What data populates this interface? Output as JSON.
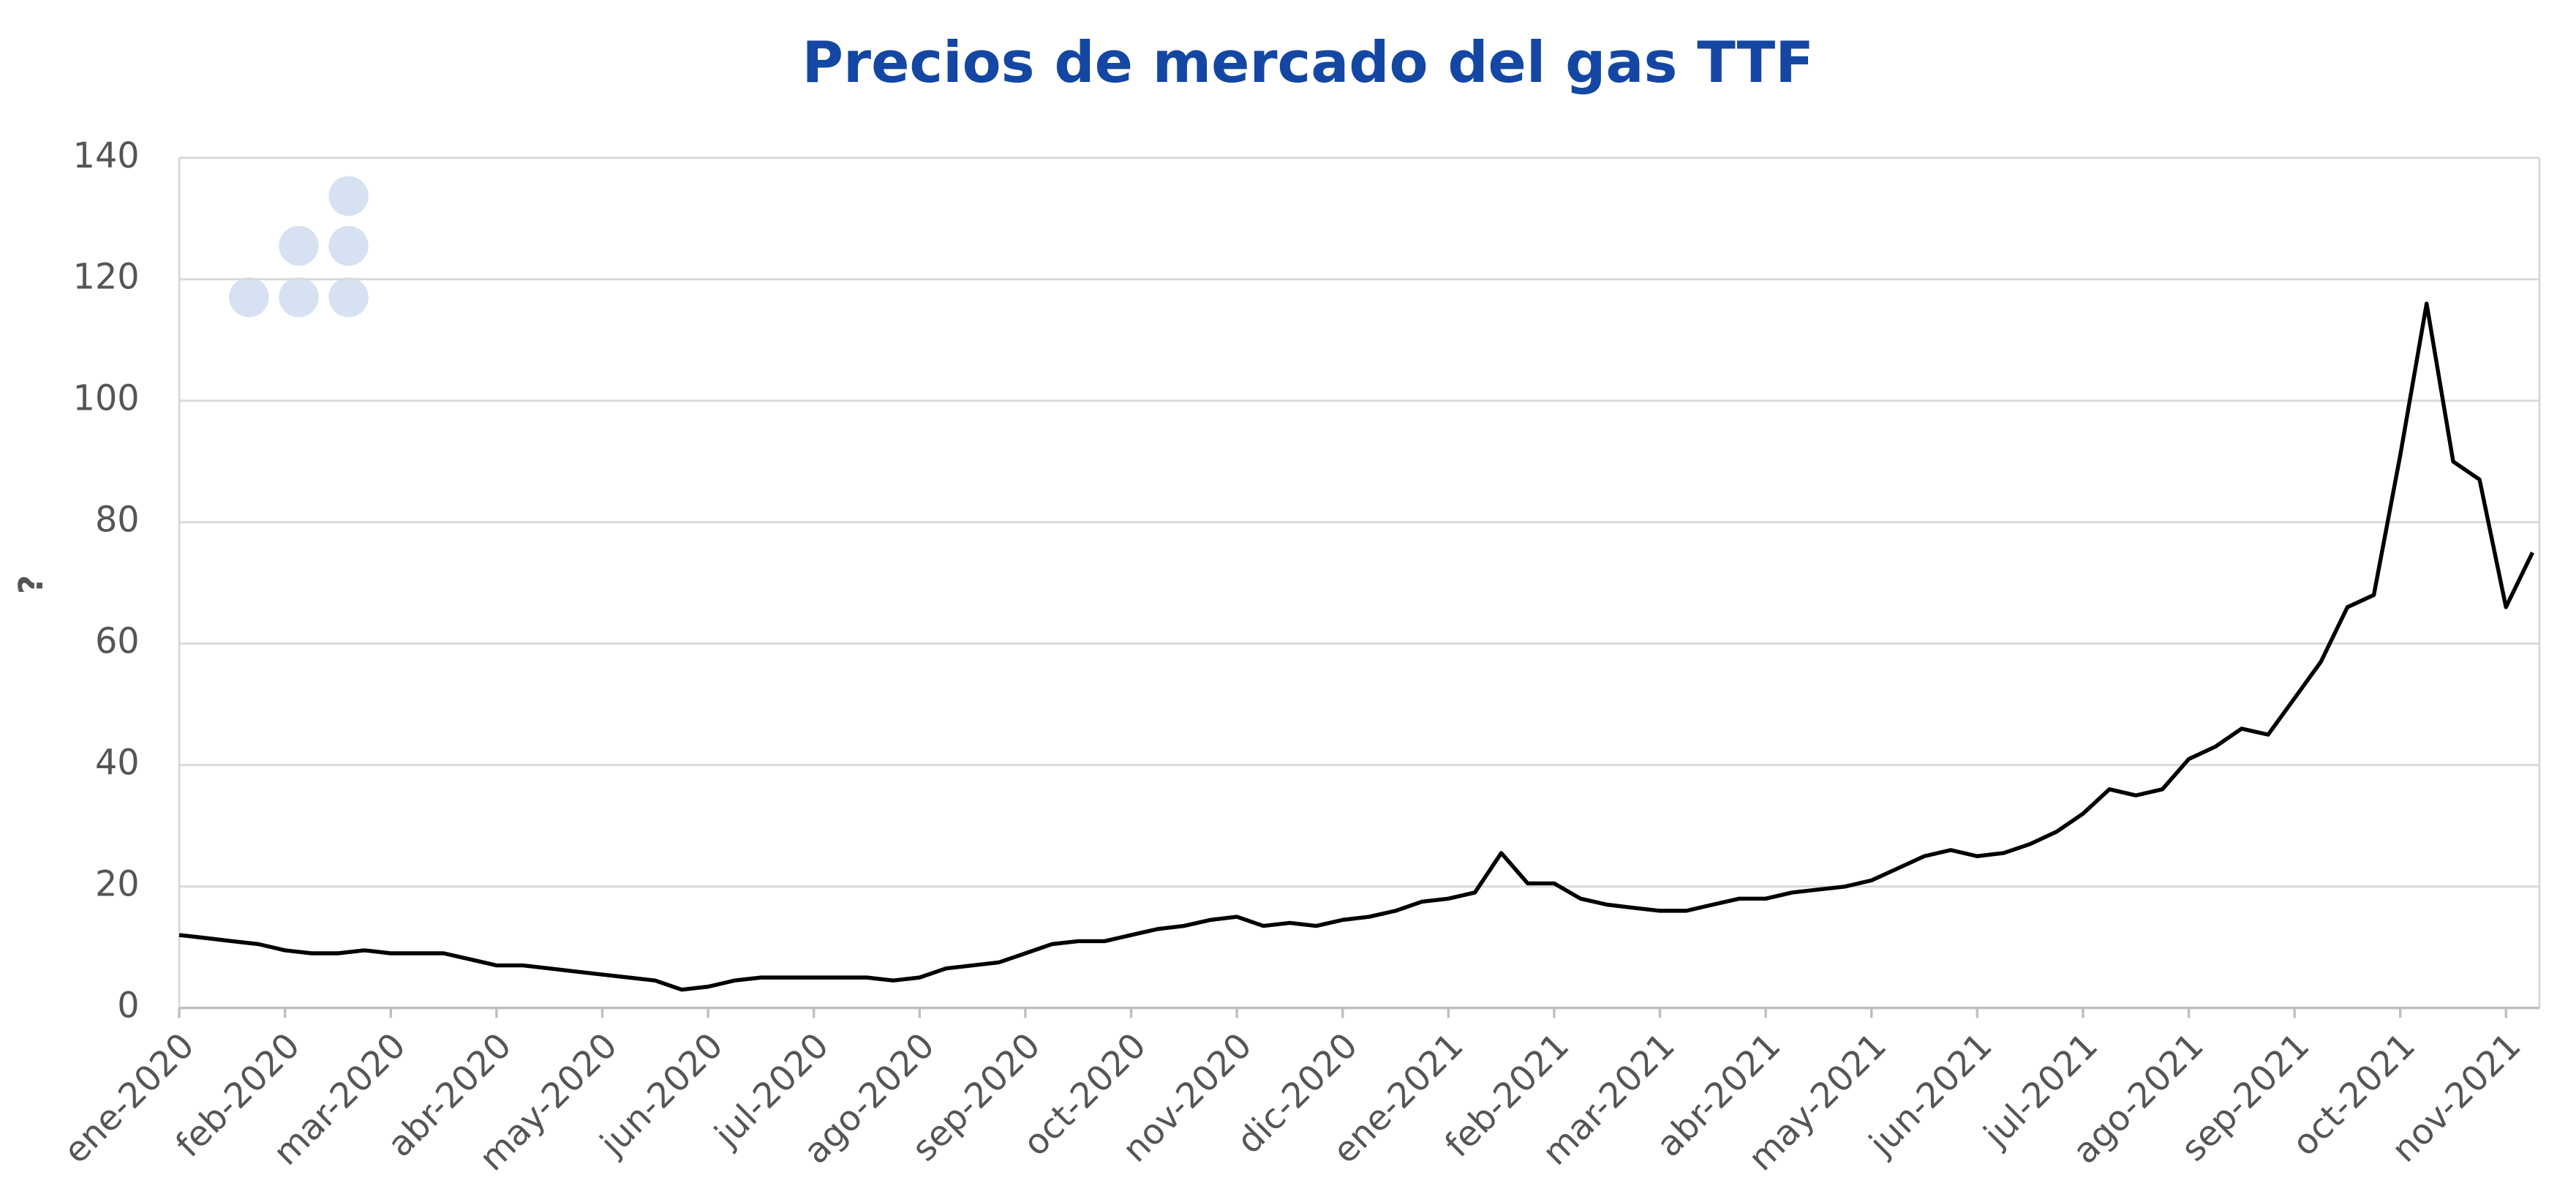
{
  "chart_data": {
    "type": "line",
    "title": "Precios de mercado del gas TTF",
    "y_label": "?",
    "categories": [
      "ene-2020",
      null,
      null,
      null,
      "feb-2020",
      null,
      null,
      null,
      "mar-2020",
      null,
      null,
      null,
      "abr-2020",
      null,
      null,
      null,
      "may-2020",
      null,
      null,
      null,
      "jun-2020",
      null,
      null,
      null,
      "jul-2020",
      null,
      null,
      null,
      "ago-2020",
      null,
      null,
      null,
      "sep-2020",
      null,
      null,
      null,
      "oct-2020",
      null,
      null,
      null,
      "nov-2020",
      null,
      null,
      null,
      "dic-2020",
      null,
      null,
      null,
      "ene-2021",
      null,
      null,
      null,
      "feb-2021",
      null,
      null,
      null,
      "mar-2021",
      null,
      null,
      null,
      "abr-2021",
      null,
      null,
      null,
      "may-2021",
      null,
      null,
      null,
      "jun-2021",
      null,
      null,
      null,
      "jul-2021",
      null,
      null,
      null,
      "ago-2021",
      null,
      null,
      null,
      "sep-2021",
      null,
      null,
      null,
      "oct-2021",
      null,
      null,
      null,
      "nov-2021",
      null
    ],
    "values": [
      12,
      11.5,
      11,
      10.5,
      9.5,
      9,
      9,
      9.5,
      9,
      9,
      9,
      8,
      7,
      7,
      6.5,
      6,
      5.5,
      5,
      4.5,
      3,
      3.5,
      4.5,
      5,
      5,
      5,
      5,
      5,
      4.5,
      5,
      6.5,
      7,
      7.5,
      9,
      10.5,
      11,
      11,
      12,
      13,
      13.5,
      14.5,
      15,
      13.5,
      14,
      13.5,
      14.5,
      15,
      16,
      17.5,
      18,
      19,
      25.5,
      20.5,
      20.5,
      18,
      17,
      16.5,
      16,
      16,
      17,
      18,
      18,
      19,
      19.5,
      20,
      21,
      23,
      25,
      26,
      25,
      25.5,
      27,
      29,
      32,
      36,
      35,
      36,
      41,
      43,
      46,
      45,
      51,
      57,
      66,
      68,
      91,
      116,
      90,
      87,
      66,
      75
    ],
    "color": "#000000",
    "ylim": [
      0,
      140
    ],
    "yticks": [
      0,
      20,
      40,
      60,
      80,
      100,
      120,
      140
    ],
    "grid": true
  }
}
